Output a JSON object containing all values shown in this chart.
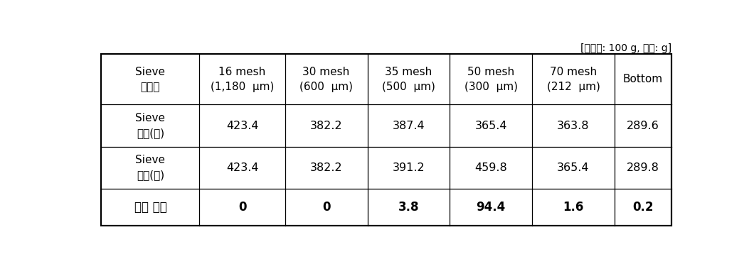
{
  "note": "[샘플양: 100 g, 단위: g]",
  "col_headers": [
    "Sieve\n사이즈",
    "16 mesh\n(1,180  μm)",
    "30 mesh\n(600  μm)",
    "35 mesh\n(500  μm)",
    "50 mesh\n(300  μm)",
    "70 mesh\n(212  μm)",
    "Bottom"
  ],
  "row_headers": [
    "Sieve\n무게(전)",
    "Sieve\n무게(후)",
    "제품 무게"
  ],
  "data": [
    [
      "423.4",
      "382.2",
      "387.4",
      "365.4",
      "363.8",
      "289.6"
    ],
    [
      "423.4",
      "382.2",
      "391.2",
      "459.8",
      "365.4",
      "289.8"
    ],
    [
      "0",
      "0",
      "3.8",
      "94.4",
      "1.6",
      "0.2"
    ]
  ],
  "bg_color": "#ffffff",
  "text_color": "#000000",
  "border_color": "#000000",
  "note_fontsize": 10,
  "header_fontsize": 11,
  "data_fontsize": 11.5,
  "last_row_fontsize": 12
}
